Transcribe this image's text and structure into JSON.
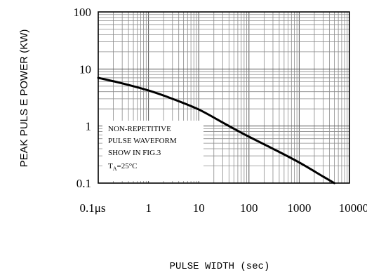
{
  "chart_data": {
    "type": "line",
    "title": "",
    "xlabel": "PULSE WIDTH (sec)",
    "ylabel": "PEAK PULS E POWER (KW)",
    "x_scale": "log",
    "y_scale": "log",
    "grid": true,
    "xlim": [
      0.1,
      10000
    ],
    "ylim": [
      0.1,
      100
    ],
    "x_ticks": [
      0.1,
      1,
      10,
      100,
      1000,
      10000
    ],
    "x_tick_labels": [
      "0.1μs",
      "1",
      "10",
      "100",
      "1000",
      "10000"
    ],
    "y_ticks": [
      0.1,
      1,
      10,
      100
    ],
    "y_tick_labels": [
      "0.1",
      "1",
      "10",
      "100"
    ],
    "series": [
      {
        "x": [
          0.1,
          0.3,
          1,
          3,
          10,
          30,
          50,
          100,
          300,
          1000,
          3000,
          5000
        ],
        "y": [
          7.0,
          5.6,
          4.2,
          3.0,
          1.95,
          1.15,
          0.9,
          0.65,
          0.4,
          0.23,
          0.13,
          0.1
        ]
      }
    ],
    "annotation": {
      "lines": [
        "NON-REPETITIVE",
        "PULSE WAVEFORM",
        "SHOW IN FIG.3"
      ],
      "temp_main": "T",
      "temp_sub": "A",
      "temp_value": "=25°C"
    }
  }
}
